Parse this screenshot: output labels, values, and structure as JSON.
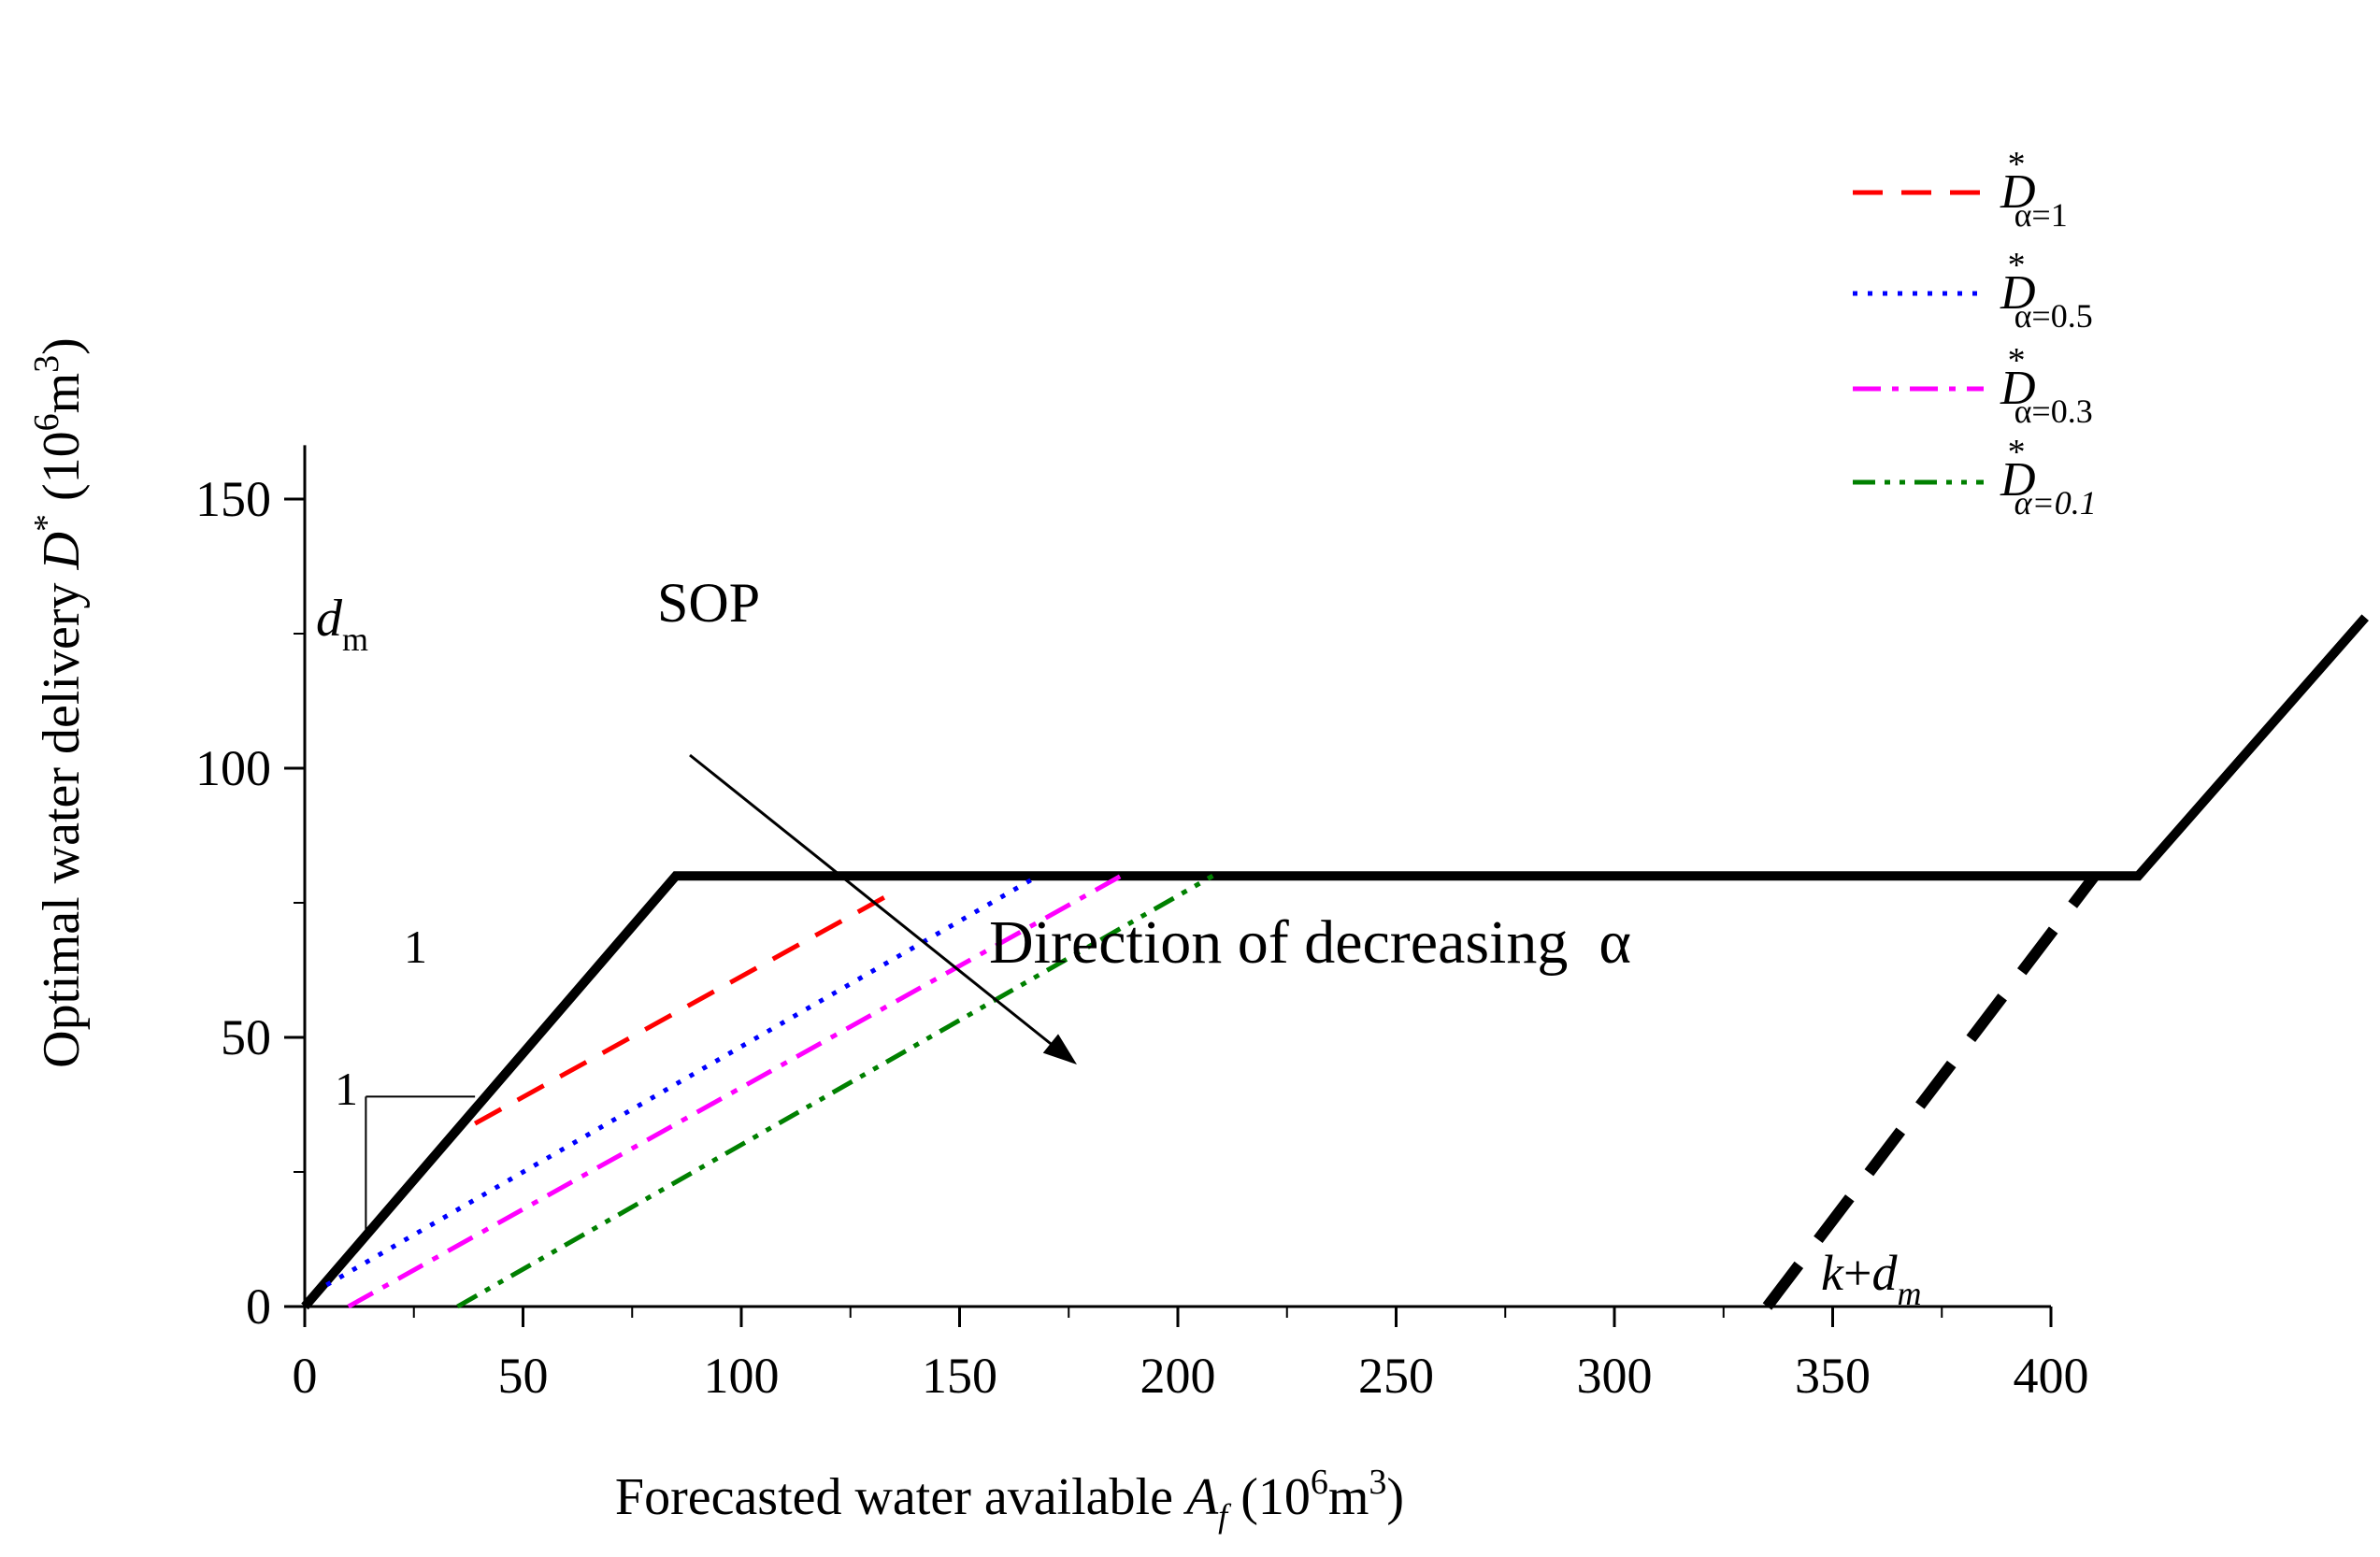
{
  "chart_data": {
    "type": "line",
    "title": "",
    "xlabel": "Forecasted water available A_f (10^6 m^3)",
    "ylabel": "Optimal water delivery D^* (10^6 m^3)",
    "x_axis": {
      "label_text": "Forecasted water available ",
      "label_var": "A",
      "label_var_sub": "f",
      "label_units_open": " (10",
      "label_units_exp1": "6",
      "label_units_mid": "m",
      "label_units_exp2": "3",
      "label_units_close": ")",
      "range": [
        0,
        420
      ],
      "ticks": [
        "0",
        "50",
        "100",
        "150",
        "200",
        "250",
        "300",
        "350",
        "400"
      ]
    },
    "y_axis": {
      "label_text": "Optimal water delivery ",
      "label_var": "D",
      "label_var_sup": "*",
      "label_units_open": " (10",
      "label_units_exp1": "6",
      "label_units_mid": "m",
      "label_units_exp2": "3",
      "label_units_close": ")",
      "range": [
        0,
        160
      ],
      "ticks": [
        "0",
        "50",
        "100",
        "150"
      ]
    },
    "series": [
      {
        "name": "SOP",
        "style": "solid",
        "color": "#000000",
        "x": [
          0,
          85,
          420,
          472
        ],
        "y": [
          0,
          80,
          80,
          128
        ]
      },
      {
        "name": "SOP dashed",
        "style": "longdash",
        "color": "#000000",
        "x": [
          335,
          410
        ],
        "y": [
          0,
          80
        ]
      },
      {
        "name": "D*_{α=1}",
        "style": "dash",
        "color": "#ff0000",
        "x": [
          39,
          135
        ],
        "y": [
          34,
          77
        ]
      },
      {
        "name": "D*_{α=0.5}",
        "style": "dot",
        "color": "#0000ff",
        "x": [
          5,
          168
        ],
        "y": [
          4,
          80
        ]
      },
      {
        "name": "D*_{α=0.3}",
        "style": "dashdot",
        "color": "#ff00ff",
        "x": [
          10,
          187
        ],
        "y": [
          0,
          80
        ]
      },
      {
        "name": "D*_{α=0.1}",
        "style": "dashdotdot",
        "color": "#008000",
        "x": [
          35,
          208
        ],
        "y": [
          0,
          80
        ]
      }
    ],
    "legend": {
      "placement": "top-right",
      "entries": [
        {
          "var": "D",
          "sup": "*",
          "sub": "α=1",
          "color": "#ff0000",
          "style": "dash"
        },
        {
          "var": "D",
          "sup": "*",
          "sub": "α=0.5",
          "color": "#0000ff",
          "style": "dot"
        },
        {
          "var": "D",
          "sup": "*",
          "sub": "α=0.3",
          "color": "#ff00ff",
          "style": "dashdot"
        },
        {
          "var": "D",
          "sup": "*",
          "sub": "α=0.1",
          "color": "#008000",
          "style": "dashdotdot",
          "sub_italic": true
        }
      ]
    },
    "annotations": {
      "sop": "SOP",
      "dm_var": "d",
      "dm_sub": "m",
      "k_dm_var": "k",
      "k_dm_plus": "+",
      "k_dm_var2": "d",
      "k_dm_sub": "m",
      "direction": "Direction of decreasing  α",
      "slope_run": "1",
      "slope_rise": "1"
    }
  }
}
